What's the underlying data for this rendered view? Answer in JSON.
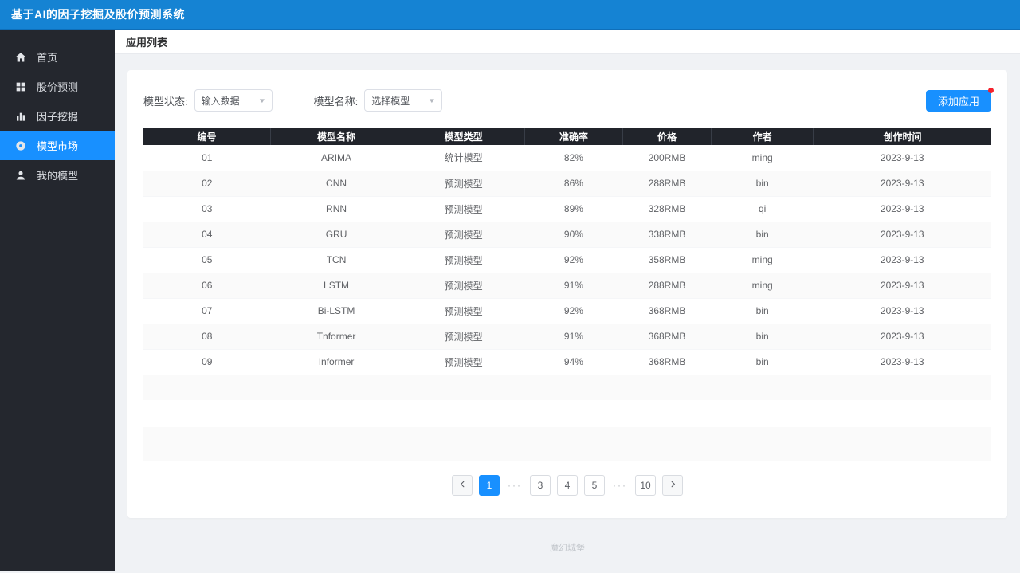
{
  "app": {
    "title": "基于AI的因子挖掘及股价预测系统"
  },
  "sidebar": {
    "items": [
      {
        "id": "home",
        "icon": "home-icon",
        "label": "首页",
        "active": false
      },
      {
        "id": "stock-prediction",
        "icon": "grid-icon",
        "label": "股价预测",
        "active": false
      },
      {
        "id": "factor-mining",
        "icon": "bar-chart-icon",
        "label": "因子挖掘",
        "active": false
      },
      {
        "id": "model-market",
        "icon": "disc-icon",
        "label": "模型市场",
        "active": true
      },
      {
        "id": "my-models",
        "icon": "user-icon",
        "label": "我的模型",
        "active": false
      }
    ]
  },
  "page": {
    "title": "应用列表"
  },
  "filters": {
    "status_label": "模型状态:",
    "status_value": "输入数据",
    "name_label": "模型名称:",
    "name_value": "选择模型"
  },
  "toolbar": {
    "add_label": "添加应用"
  },
  "table": {
    "columns": [
      "编号",
      "模型名称",
      "模型类型",
      "准确率",
      "价格",
      "作者",
      "创作时间"
    ],
    "col_widths": [
      "15%",
      "15.5%",
      "14.5%",
      "11.5%",
      "10.5%",
      "12%",
      "21%"
    ],
    "rows": [
      [
        "01",
        "ARIMA",
        "统计模型",
        "82%",
        "200RMB",
        "ming",
        "2023-9-13"
      ],
      [
        "02",
        "CNN",
        "预测模型",
        "86%",
        "288RMB",
        "bin",
        "2023-9-13"
      ],
      [
        "03",
        "RNN",
        "预测模型",
        "89%",
        "328RMB",
        "qi",
        "2023-9-13"
      ],
      [
        "04",
        "GRU",
        "预测模型",
        "90%",
        "338RMB",
        "bin",
        "2023-9-13"
      ],
      [
        "05",
        "TCN",
        "预测模型",
        "92%",
        "358RMB",
        "ming",
        "2023-9-13"
      ],
      [
        "06",
        "LSTM",
        "预测模型",
        "91%",
        "288RMB",
        "ming",
        "2023-9-13"
      ],
      [
        "07",
        "Bi-LSTM",
        "预测模型",
        "92%",
        "368RMB",
        "bin",
        "2023-9-13"
      ],
      [
        "08",
        "Tnformer",
        "预测模型",
        "91%",
        "368RMB",
        "bin",
        "2023-9-13"
      ],
      [
        "09",
        "Informer",
        "预测模型",
        "94%",
        "368RMB",
        "bin",
        "2023-9-13"
      ]
    ]
  },
  "pagination": {
    "items": [
      {
        "type": "prev"
      },
      {
        "type": "page",
        "label": "1",
        "active": true
      },
      {
        "type": "ellipsis",
        "label": "···"
      },
      {
        "type": "page",
        "label": "3",
        "active": false
      },
      {
        "type": "page",
        "label": "4",
        "active": false
      },
      {
        "type": "page",
        "label": "5",
        "active": false
      },
      {
        "type": "ellipsis",
        "label": "···"
      },
      {
        "type": "page",
        "label": "10",
        "active": false
      },
      {
        "type": "next"
      }
    ]
  },
  "footer": {
    "text": "魔幻城堡"
  },
  "colors": {
    "topbar_blue": "#1583d3",
    "accent_blue": "#1890ff",
    "sidebar_dark": "#24272e",
    "table_header_dark": "#21242b",
    "stripe": "#fafafa",
    "badge_red": "#f5222d"
  }
}
